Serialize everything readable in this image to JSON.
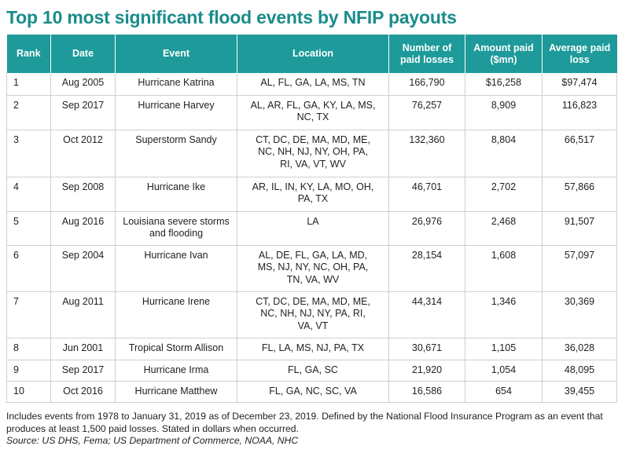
{
  "title": "Top 10 most significant flood events by NFIP payouts",
  "columns": {
    "rank": "Rank",
    "date": "Date",
    "event": "Event",
    "location": "Location",
    "losses_line1": "Number of",
    "losses_line2": "paid losses",
    "amount_line1": "Amount paid",
    "amount_line2": "($mn)",
    "avg_line1": "Average paid",
    "avg_line2": "loss"
  },
  "rows": [
    {
      "rank": "1",
      "date": "Aug 2005",
      "event": [
        "Hurricane Katrina"
      ],
      "location": [
        "AL, FL, GA, LA, MS, TN"
      ],
      "losses": "166,790",
      "amount": "$16,258",
      "avg": "$97,474"
    },
    {
      "rank": "2",
      "date": "Sep 2017",
      "event": [
        "Hurricane Harvey"
      ],
      "location": [
        "AL, AR, FL, GA, KY, LA, MS,",
        "NC, TX"
      ],
      "losses": "76,257",
      "amount": "8,909",
      "avg": "116,823"
    },
    {
      "rank": "3",
      "date": "Oct 2012",
      "event": [
        "Superstorm Sandy"
      ],
      "location": [
        "CT, DC, DE, MA, MD, ME,",
        "NC, NH, NJ, NY, OH, PA,",
        "RI, VA, VT, WV"
      ],
      "losses": "132,360",
      "amount": "8,804",
      "avg": "66,517"
    },
    {
      "rank": "4",
      "date": "Sep 2008",
      "event": [
        "Hurricane Ike"
      ],
      "location": [
        "AR, IL, IN, KY, LA, MO, OH,",
        "PA, TX"
      ],
      "losses": "46,701",
      "amount": "2,702",
      "avg": "57,866"
    },
    {
      "rank": "5",
      "date": "Aug 2016",
      "event": [
        "Louisiana severe storms",
        "and flooding"
      ],
      "location": [
        "LA"
      ],
      "losses": "26,976",
      "amount": "2,468",
      "avg": "91,507"
    },
    {
      "rank": "6",
      "date": "Sep 2004",
      "event": [
        "Hurricane Ivan"
      ],
      "location": [
        "AL, DE, FL, GA, LA, MD,",
        "MS, NJ, NY, NC, OH, PA,",
        "TN, VA, WV"
      ],
      "losses": "28,154",
      "amount": "1,608",
      "avg": "57,097"
    },
    {
      "rank": "7",
      "date": "Aug 2011",
      "event": [
        "Hurricane Irene"
      ],
      "location": [
        "CT, DC, DE, MA, MD, ME,",
        "NC, NH, NJ, NY, PA, RI,",
        "VA, VT"
      ],
      "losses": "44,314",
      "amount": "1,346",
      "avg": "30,369"
    },
    {
      "rank": "8",
      "date": "Jun 2001",
      "event": [
        "Tropical Storm Allison"
      ],
      "location": [
        "FL, LA, MS, NJ, PA, TX"
      ],
      "losses": "30,671",
      "amount": "1,105",
      "avg": "36,028"
    },
    {
      "rank": "9",
      "date": "Sep 2017",
      "event": [
        "Hurricane Irma"
      ],
      "location": [
        "FL, GA, SC"
      ],
      "losses": "21,920",
      "amount": "1,054",
      "avg": "48,095"
    },
    {
      "rank": "10",
      "date": "Oct 2016",
      "event": [
        "Hurricane Matthew"
      ],
      "location": [
        "FL, GA, NC, SC, VA"
      ],
      "losses": "16,586",
      "amount": "654",
      "avg": "39,455"
    }
  ],
  "footnote": "Includes events from 1978 to January 31, 2019 as of December 23, 2019. Defined by the National Flood Insurance Program as an event that produces at least 1,500 paid losses. Stated in dollars when occurred.",
  "source": "Source: US DHS, Fema; US Department of Commerce, NOAA, NHC",
  "colors": {
    "accent": "#1e9a9a",
    "title": "#1a8c8a",
    "rule": "#cfcfcf"
  }
}
